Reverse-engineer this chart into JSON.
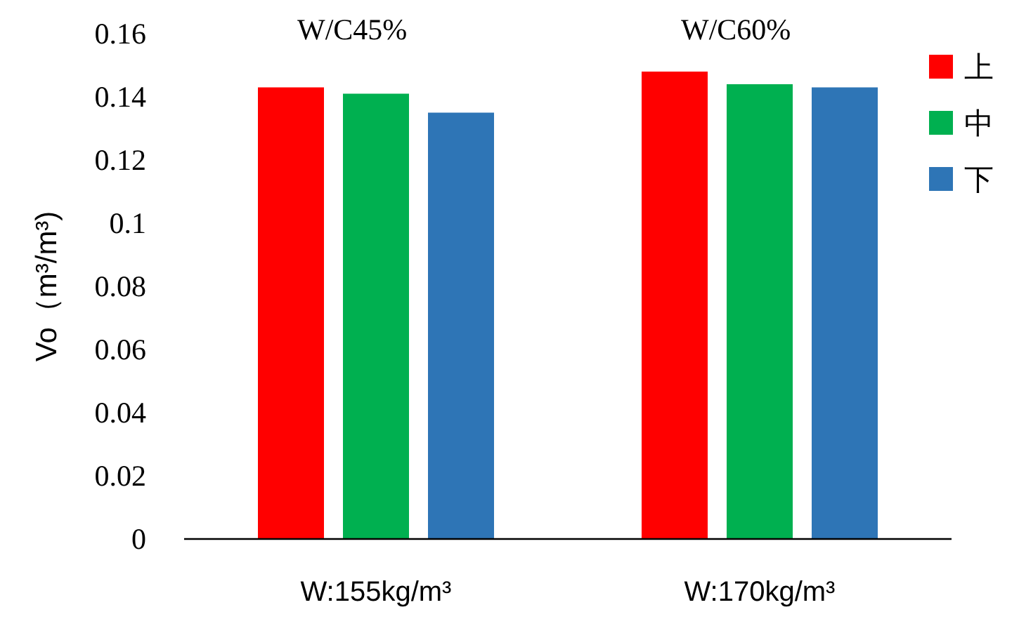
{
  "chart_data": {
    "type": "bar",
    "ylabel": "Vo（m³/m³)",
    "categories": [
      "W:155kg/m³",
      "W:170kg/m³"
    ],
    "series": [
      {
        "name": "上",
        "color": "#ff0000",
        "values": [
          0.143,
          0.148
        ]
      },
      {
        "name": "中",
        "color": "#00b050",
        "values": [
          0.141,
          0.144
        ]
      },
      {
        "name": "下",
        "color": "#2e75b6",
        "values": [
          0.135,
          0.143
        ]
      }
    ],
    "ylim": [
      0,
      0.16
    ],
    "yticks": [
      0,
      0.02,
      0.04,
      0.06,
      0.08,
      0.1,
      0.12,
      0.14,
      0.16
    ],
    "annotations": [
      "W/C45%",
      "W/C60%"
    ],
    "grid": false,
    "legend": "right"
  }
}
